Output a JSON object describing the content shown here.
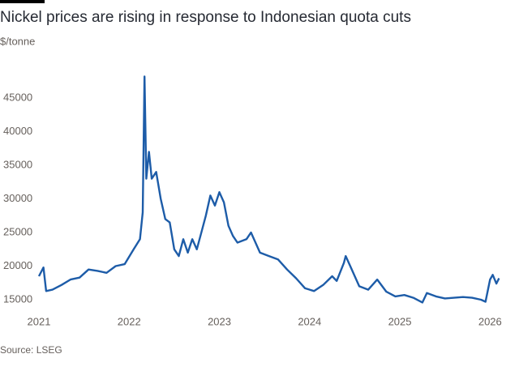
{
  "chart_data": {
    "type": "line",
    "title": "Nickel prices are rising in response to Indonesian quota cuts",
    "subtitle": "$/tonne",
    "source": "Source: LSEG",
    "x": [
      2021.0,
      2021.05,
      2021.08,
      2021.15,
      2021.25,
      2021.35,
      2021.45,
      2021.55,
      2021.65,
      2021.75,
      2021.85,
      2021.95,
      2022.05,
      2022.12,
      2022.15,
      2022.17,
      2022.19,
      2022.22,
      2022.25,
      2022.3,
      2022.35,
      2022.4,
      2022.45,
      2022.5,
      2022.55,
      2022.6,
      2022.65,
      2022.7,
      2022.75,
      2022.8,
      2022.85,
      2022.9,
      2022.95,
      2023.0,
      2023.05,
      2023.1,
      2023.15,
      2023.2,
      2023.3,
      2023.35,
      2023.45,
      2023.55,
      2023.65,
      2023.75,
      2023.85,
      2023.95,
      2024.05,
      2024.15,
      2024.25,
      2024.3,
      2024.38,
      2024.4,
      2024.45,
      2024.55,
      2024.65,
      2024.75,
      2024.85,
      2024.95,
      2025.05,
      2025.15,
      2025.25,
      2025.3,
      2025.4,
      2025.5,
      2025.6,
      2025.7,
      2025.8,
      2025.9,
      2025.95,
      2026.0,
      2026.03,
      2026.07,
      2026.1
    ],
    "series": [
      {
        "name": "Nickel",
        "color": "#1d5ca8",
        "values": [
          18500,
          19800,
          16300,
          16500,
          17200,
          18000,
          18300,
          19500,
          19300,
          19000,
          20000,
          20300,
          22500,
          24000,
          28000,
          48200,
          33000,
          37000,
          33000,
          34000,
          30000,
          27000,
          26500,
          22500,
          21500,
          24000,
          22000,
          24000,
          22500,
          25000,
          27500,
          30500,
          29000,
          31000,
          29500,
          26000,
          24500,
          23500,
          24000,
          25000,
          22000,
          21500,
          21000,
          19500,
          18200,
          16700,
          16300,
          17200,
          18500,
          17800,
          20500,
          21500,
          20000,
          17000,
          16500,
          18000,
          16200,
          15500,
          15700,
          15300,
          14600,
          16000,
          15500,
          15200,
          15300,
          15400,
          15300,
          15000,
          14700,
          18000,
          18700,
          17400,
          18200
        ]
      }
    ],
    "xlim": [
      2021.0,
      2026.15
    ],
    "xticks": [
      2021,
      2022,
      2023,
      2024,
      2025,
      2026
    ],
    "ylim": [
      13800,
      48500
    ],
    "yticks": [
      15000,
      20000,
      25000,
      30000,
      35000,
      40000,
      45000
    ]
  }
}
